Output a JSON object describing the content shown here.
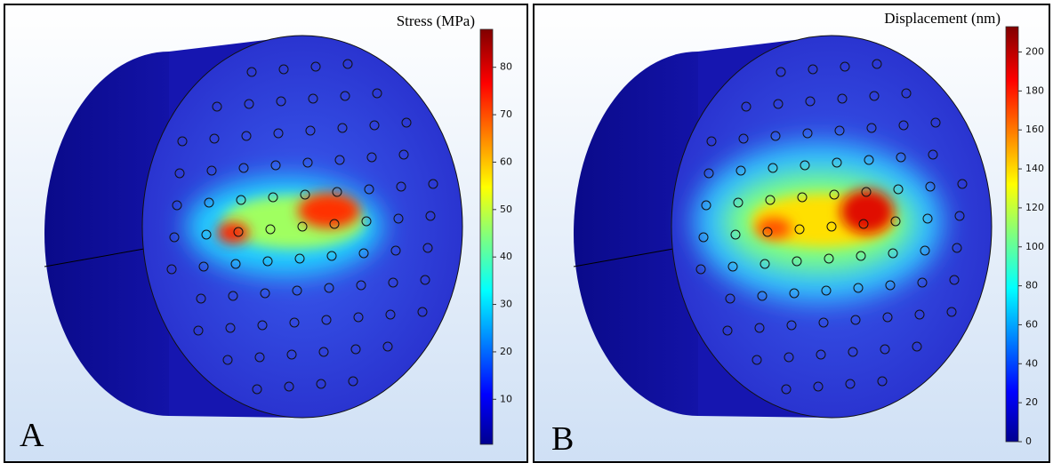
{
  "panels": [
    {
      "label": "A",
      "colorbar": {
        "title": "Stress (MPa)",
        "range": [
          0.5,
          88
        ],
        "ticks": [
          10,
          20,
          30,
          40,
          50,
          60,
          70,
          80
        ]
      }
    },
    {
      "label": "B",
      "colorbar": {
        "title": "Displacement (nm)",
        "range": [
          0,
          213
        ],
        "ticks": [
          0,
          20,
          40,
          60,
          80,
          100,
          120,
          140,
          160,
          180,
          200
        ]
      }
    }
  ]
}
